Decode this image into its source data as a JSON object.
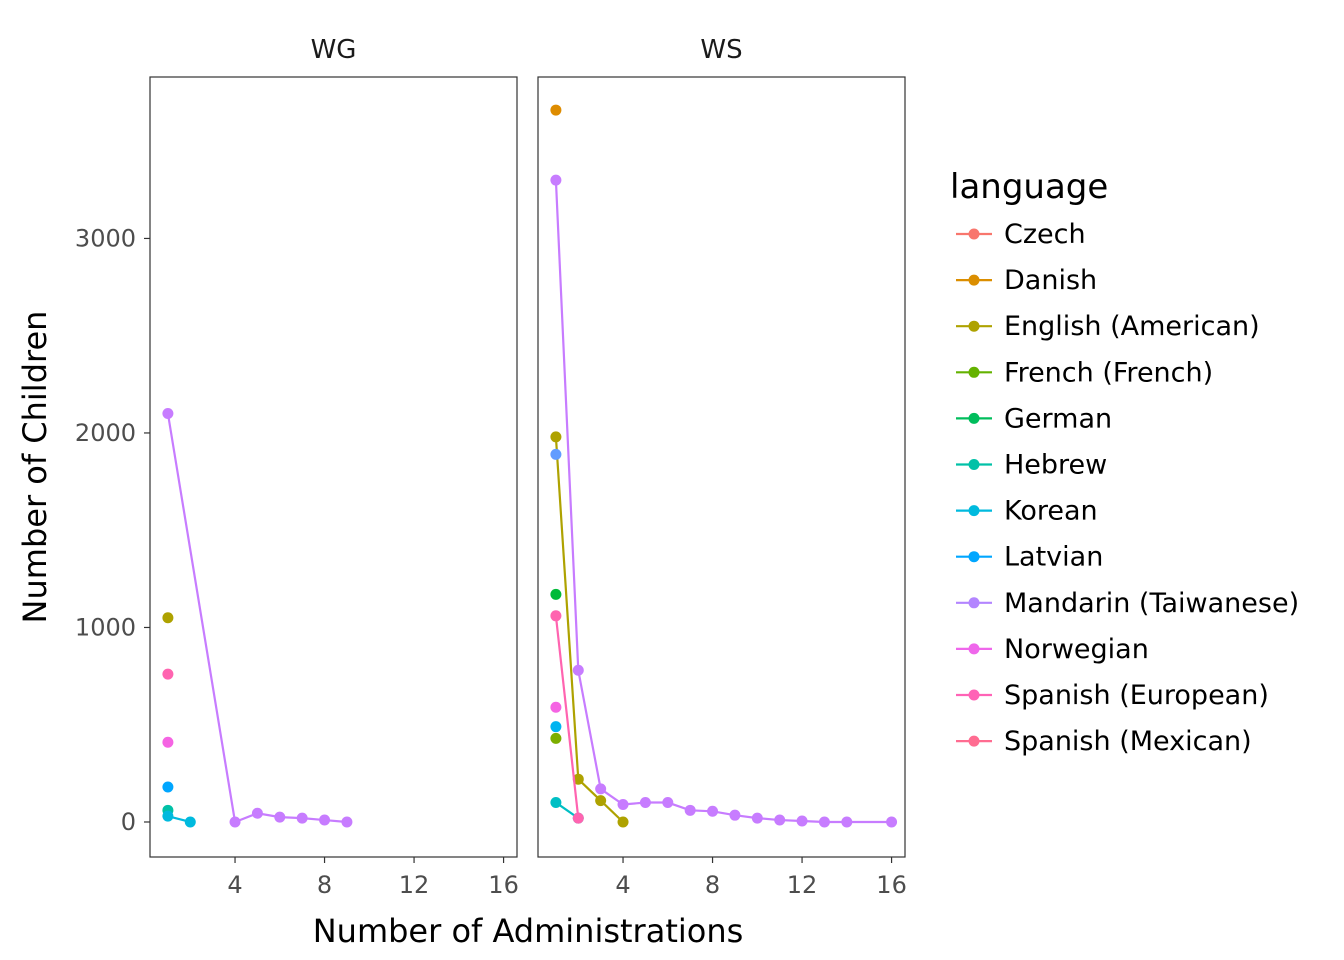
{
  "chart_data": {
    "type": "line",
    "xlabel": "Number of Administrations",
    "ylabel": "Number of Children",
    "xlim": [
      0.2,
      16.6
    ],
    "ylim": [
      -180,
      3830
    ],
    "xticks": [
      4,
      8,
      12,
      16
    ],
    "yticks": [
      0,
      1000,
      2000,
      3000
    ],
    "grid": false,
    "legend": {
      "title": "language",
      "position": "right",
      "entries": [
        {
          "name": "Czech",
          "color": "#F8766D"
        },
        {
          "name": "Danish",
          "color": "#DB8E00"
        },
        {
          "name": "English (American)",
          "color": "#AEA200"
        },
        {
          "name": "French (French)",
          "color": "#64B200"
        },
        {
          "name": "German",
          "color": "#00BD5C"
        },
        {
          "name": "Hebrew",
          "color": "#00C1A7"
        },
        {
          "name": "Korean",
          "color": "#00BADE"
        },
        {
          "name": "Latvian",
          "color": "#00A6FF"
        },
        {
          "name": "Mandarin (Taiwanese)",
          "color": "#B385FF"
        },
        {
          "name": "Norwegian",
          "color": "#EF67EB"
        },
        {
          "name": "Spanish (European)",
          "color": "#FF63B6"
        },
        {
          "name": "Spanish (Mexican)",
          "color": "#FF6C91"
        }
      ]
    },
    "panels": [
      {
        "label": "WG",
        "series": [
          {
            "name": "English (American)",
            "color": "#AEA200",
            "x": [
              1
            ],
            "y": [
              1050
            ]
          },
          {
            "name": "Hebrew",
            "color": "#00C1A7",
            "x": [
              1
            ],
            "y": [
              60
            ]
          },
          {
            "name": "Korean",
            "color": "#00BADE",
            "x": [
              1,
              2
            ],
            "y": [
              30,
              0
            ]
          },
          {
            "name": "Latvian",
            "color": "#00A6FF",
            "x": [
              1
            ],
            "y": [
              180
            ]
          },
          {
            "name": "Norwegian",
            "color": "#C77CFF",
            "x": [
              1,
              4,
              5,
              6,
              7,
              8,
              9
            ],
            "y": [
              2100,
              0,
              45,
              25,
              20,
              10,
              0
            ]
          },
          {
            "name": "Spanish (European)",
            "color": "#F564E3",
            "x": [
              1
            ],
            "y": [
              410
            ]
          },
          {
            "name": "Spanish (Mexican)",
            "color": "#FF64B0",
            "x": [
              1
            ],
            "y": [
              760
            ]
          }
        ]
      },
      {
        "label": "WS",
        "series": [
          {
            "name": "Danish",
            "color": "#DE8C00",
            "x": [
              1
            ],
            "y": [
              3660
            ]
          },
          {
            "name": "English (American)",
            "color": "#AEA200",
            "x": [
              1,
              2,
              3,
              4
            ],
            "y": [
              1980,
              220,
              110,
              0
            ]
          },
          {
            "name": "French (French)",
            "color": "#7CAE00",
            "x": [
              1
            ],
            "y": [
              430
            ]
          },
          {
            "name": "German",
            "color": "#00BA38",
            "x": [
              1
            ],
            "y": [
              1170
            ]
          },
          {
            "name": "Korean",
            "color": "#00BFC4",
            "x": [
              1,
              2
            ],
            "y": [
              100,
              20
            ]
          },
          {
            "name": "Latvian",
            "color": "#00B4F0",
            "x": [
              1
            ],
            "y": [
              490
            ]
          },
          {
            "name": "Mandarin (Taiwanese)",
            "color": "#619CFF",
            "x": [
              1
            ],
            "y": [
              1890
            ]
          },
          {
            "name": "Norwegian",
            "color": "#C77CFF",
            "x": [
              1,
              2,
              3,
              4,
              5,
              6,
              7,
              8,
              9,
              10,
              11,
              12,
              13,
              14,
              16
            ],
            "y": [
              3300,
              780,
              170,
              90,
              100,
              100,
              60,
              55,
              35,
              20,
              10,
              5,
              0,
              0,
              0
            ]
          },
          {
            "name": "Spanish (European)",
            "color": "#F564E3",
            "x": [
              1
            ],
            "y": [
              590
            ]
          },
          {
            "name": "Spanish (Mexican)",
            "color": "#FF64B0",
            "x": [
              1,
              2
            ],
            "y": [
              1060,
              20
            ]
          }
        ]
      }
    ]
  }
}
